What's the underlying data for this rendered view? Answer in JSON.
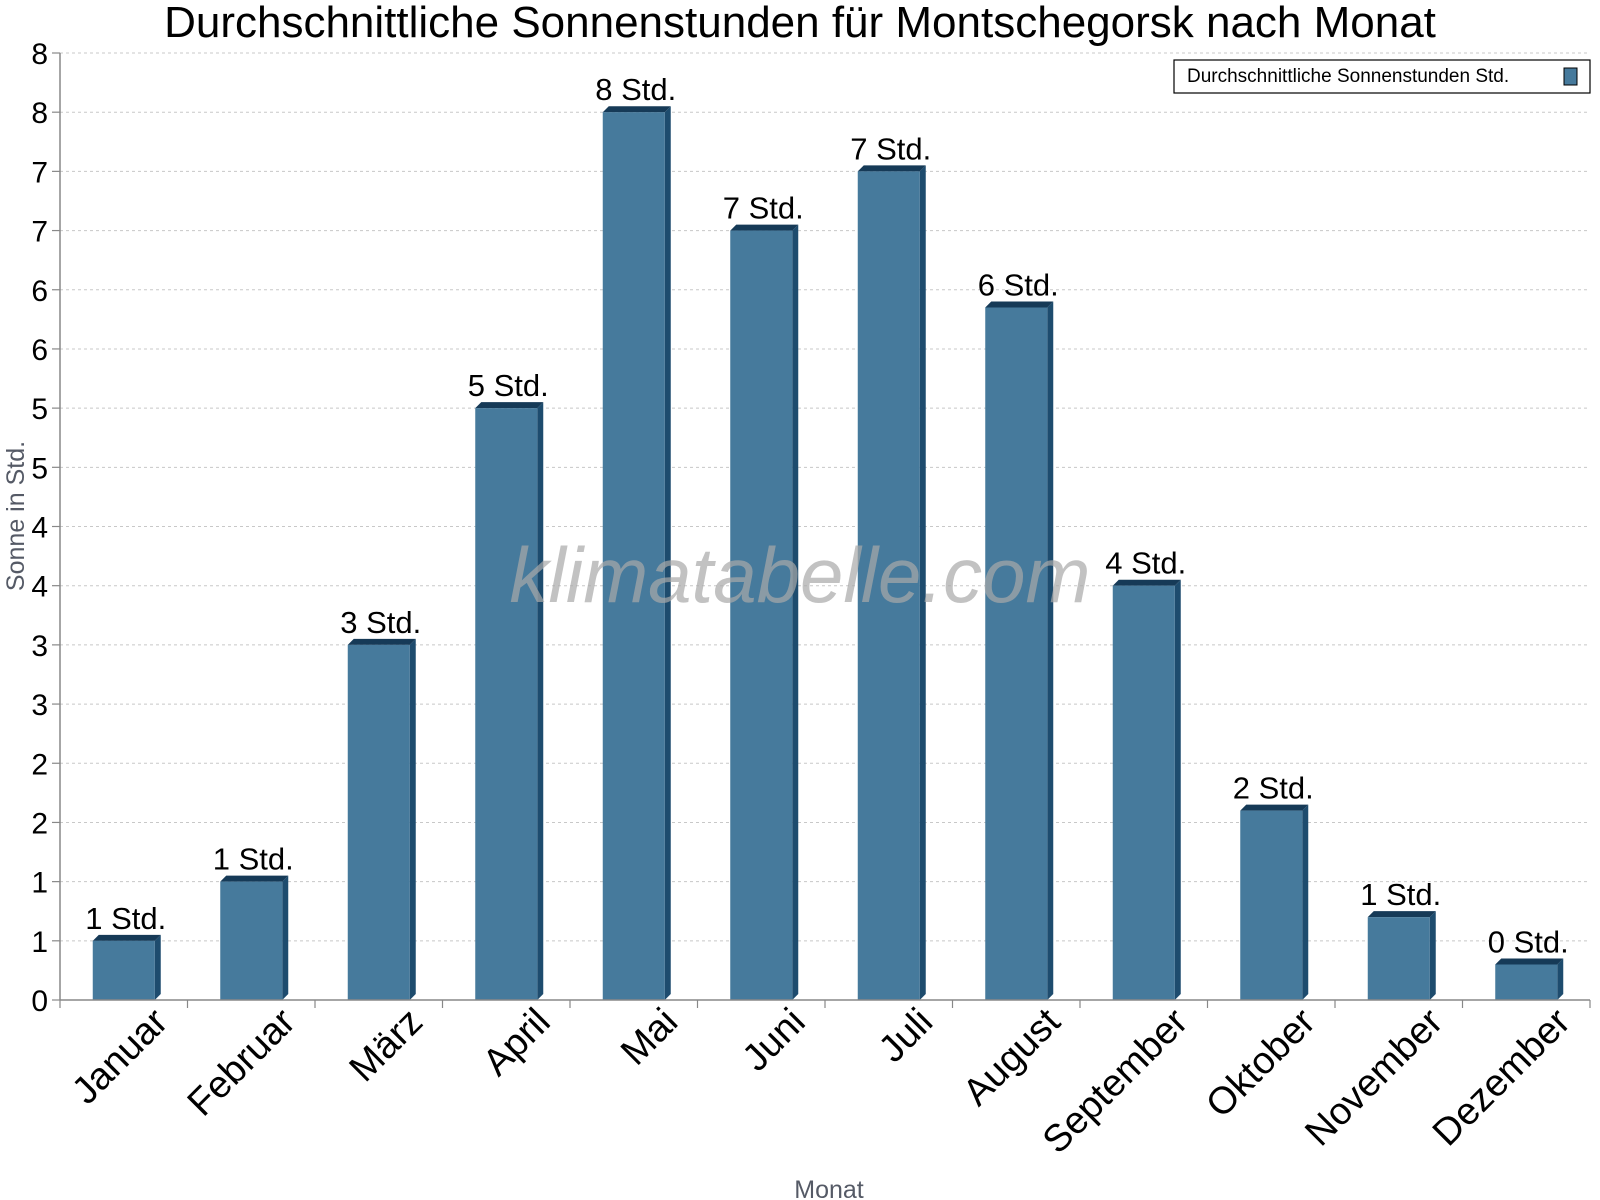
{
  "chart_data": {
    "type": "bar",
    "title": "Durchschnittliche Sonnenstunden für Montschegorsk nach Monat",
    "xlabel": "Monat",
    "ylabel": "Sonne in Std.",
    "watermark": "klimatabelle.com",
    "categories": [
      "Januar",
      "Februar",
      "März",
      "April",
      "Mai",
      "Juni",
      "Juli",
      "August",
      "September",
      "Oktober",
      "November",
      "Dezember"
    ],
    "series": [
      {
        "name": "Durchschnittliche Sonnenstunden Std.",
        "values": [
          1.0,
          2.0,
          6.0,
          10.0,
          15.0,
          13.0,
          14.0,
          11.7,
          7.0,
          3.2,
          1.4,
          0.6
        ],
        "labels": [
          "1 Std.",
          "1 Std.",
          "3 Std.",
          "5 Std.",
          "8 Std.",
          "7 Std.",
          "7 Std.",
          "6 Std.",
          "4 Std.",
          "2 Std.",
          "1 Std.",
          "0 Std."
        ]
      }
    ],
    "yticks": [
      "0",
      "1",
      "1",
      "2",
      "2",
      "3",
      "3",
      "4",
      "4",
      "5",
      "5",
      "6",
      "6",
      "7",
      "7",
      "8",
      "8"
    ],
    "ylim": [
      0,
      16
    ],
    "grid": true,
    "legend_position": "top-right",
    "colors": {
      "bar_face": "#467a9c",
      "bar_side": "#1e4c6e",
      "bar_top": "#163a57",
      "grid": "#c8c8c8",
      "axis": "#888888"
    }
  }
}
